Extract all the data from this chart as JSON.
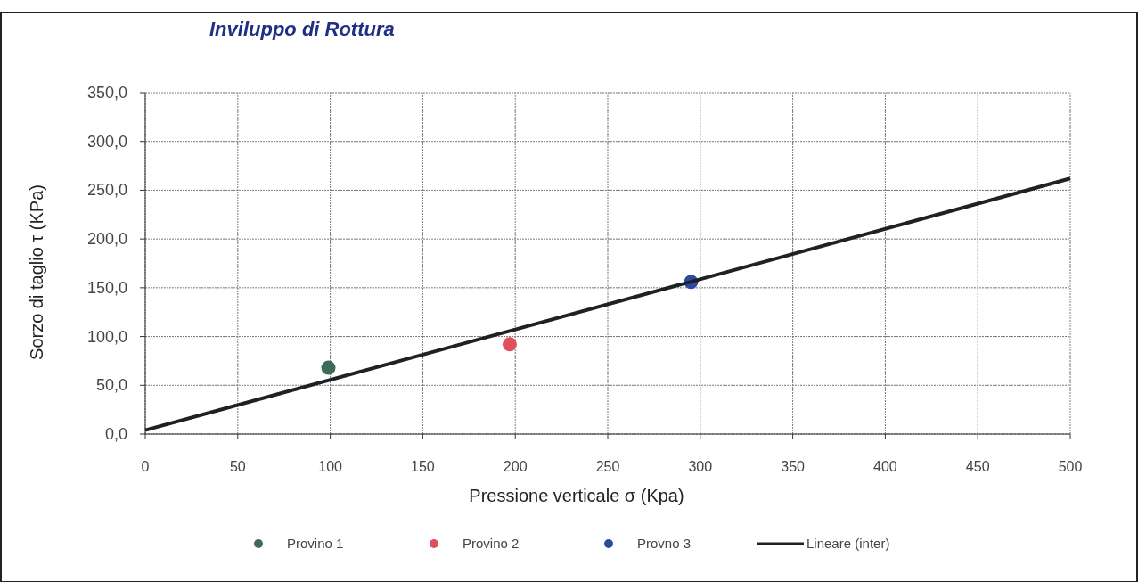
{
  "chart_data": {
    "type": "scatter",
    "title": "Inviluppo di Rottura",
    "xlabel": "Pressione verticale σ (Kpa)",
    "ylabel": "Sorzo di taglio τ (KPa)",
    "xlim": [
      0,
      500
    ],
    "xticks": [
      0,
      50,
      100,
      150,
      200,
      250,
      300,
      350,
      400,
      450,
      500
    ],
    "ylim": [
      0,
      350
    ],
    "yticks": [
      {
        "value": 0,
        "label": "0,0"
      },
      {
        "value": 50,
        "label": "50,0"
      },
      {
        "value": 100,
        "label": "100,0"
      },
      {
        "value": 150,
        "label": "150,0"
      },
      {
        "value": 200,
        "label": "200,0"
      },
      {
        "value": 250,
        "label": "250,0"
      },
      {
        "value": 300,
        "label": "300,0"
      },
      {
        "value": 350,
        "label": "350,0"
      }
    ],
    "grid": true,
    "legend": "bottom",
    "marker": "circle",
    "series": [
      {
        "name": "Provino 1",
        "color": "#3d6b57",
        "x": [
          99
        ],
        "values": [
          68
        ]
      },
      {
        "name": "Provino 2",
        "color": "#e0505a",
        "x": [
          197
        ],
        "values": [
          92
        ]
      },
      {
        "name": "Provno 3",
        "color": "#2d4a9e",
        "x": [
          295
        ],
        "values": [
          156
        ]
      },
      {
        "name": "Lineare (inter)",
        "type": "line",
        "color": "#1e2226",
        "marker": "none",
        "line_style": "solid",
        "x": [
          0,
          500
        ],
        "values": [
          4,
          262
        ]
      }
    ]
  }
}
